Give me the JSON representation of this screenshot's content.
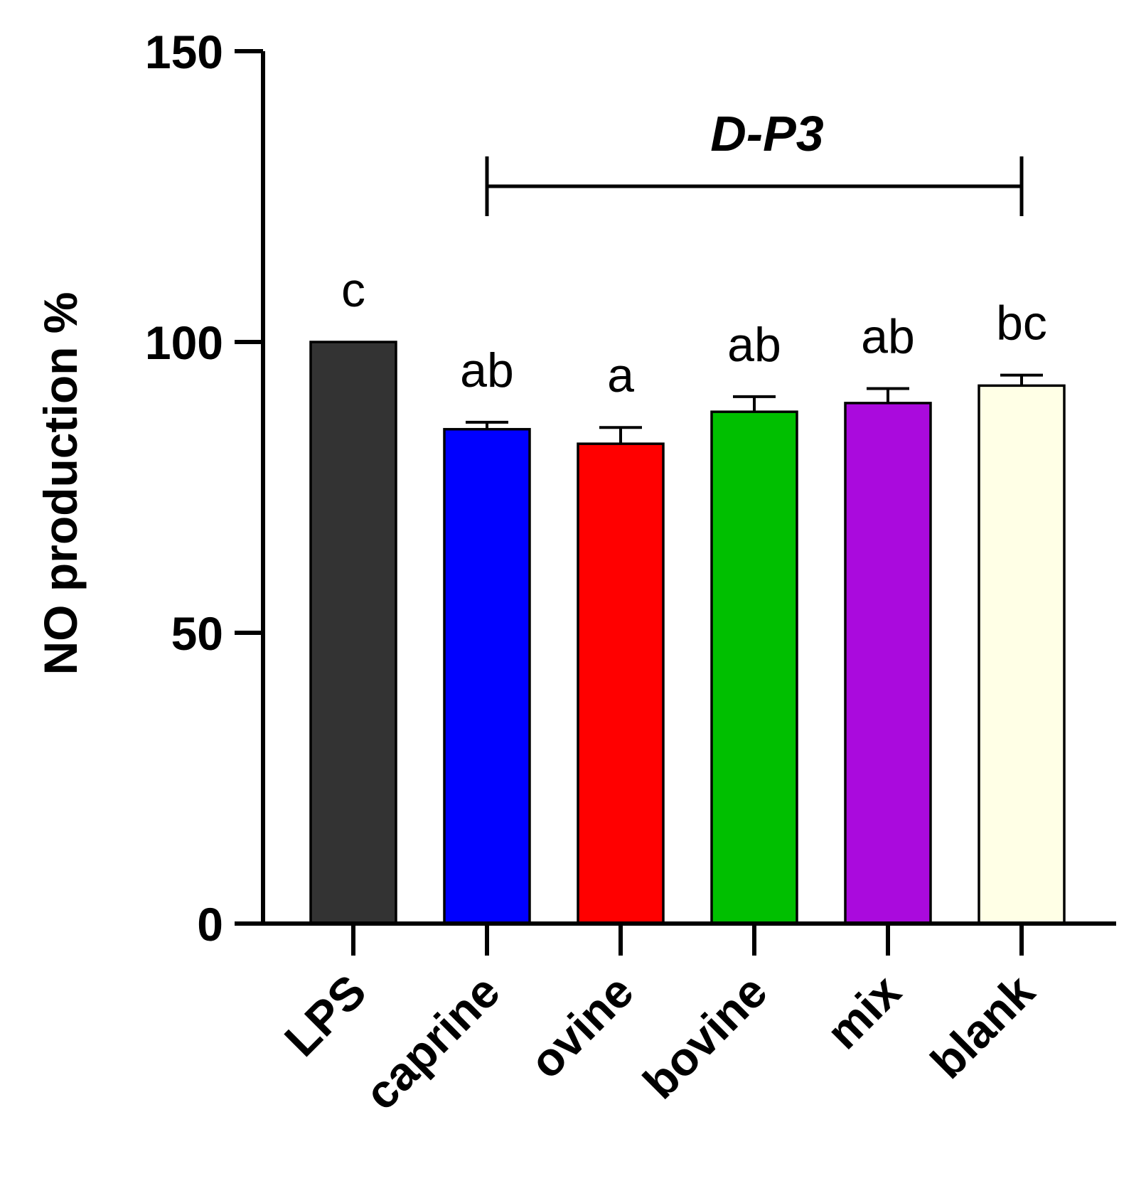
{
  "chart_data": {
    "type": "bar",
    "title": "",
    "xlabel": "",
    "ylabel": "NO production %",
    "ylim": [
      0,
      150
    ],
    "yticks": [
      0,
      50,
      100,
      150
    ],
    "grid": false,
    "categories": [
      "LPS",
      "caprine",
      "ovine",
      "bovine",
      "mix",
      "blank"
    ],
    "values": [
      100,
      85,
      82.5,
      88,
      89.5,
      92.5
    ],
    "errors": [
      0,
      1.2,
      2.8,
      2.6,
      2.5,
      1.8
    ],
    "colors": [
      "#333333",
      "#0000FF",
      "#FF0000",
      "#00BF00",
      "#AA0ADD",
      "#FFFFE6"
    ],
    "significance": [
      "c",
      "ab",
      "a",
      "ab",
      "ab",
      "bc"
    ],
    "group_bracket": {
      "label": "D-P3",
      "from": "caprine",
      "to": "blank"
    }
  }
}
